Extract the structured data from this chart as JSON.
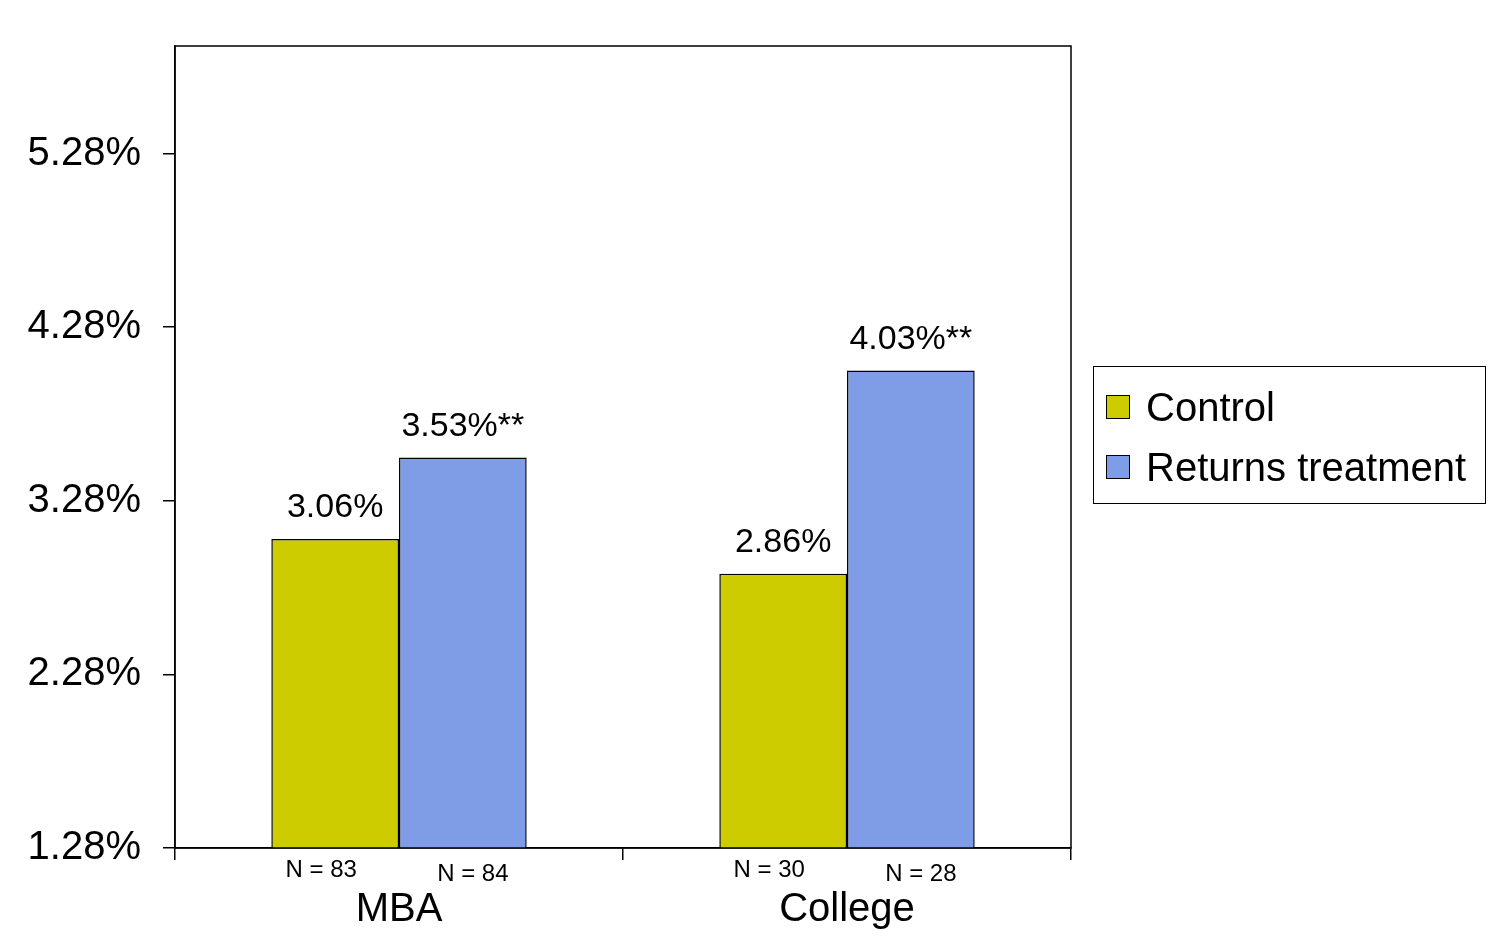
{
  "chart_data": {
    "type": "bar",
    "categories": [
      "MBA",
      "College"
    ],
    "series": [
      {
        "name": "Control",
        "color": "#cccc00",
        "values": [
          3.06,
          2.86
        ],
        "value_labels": [
          "3.06%",
          "2.86%"
        ]
      },
      {
        "name": "Returns treatment",
        "color": "#7f9de6",
        "values": [
          3.53,
          4.03
        ],
        "value_labels": [
          "3.53%**",
          "4.03%**"
        ]
      }
    ],
    "ylim": [
      1.28,
      5.9
    ],
    "yticks": [
      {
        "value": 1.28,
        "label": "1.28%"
      },
      {
        "value": 2.28,
        "label": "2.28%"
      },
      {
        "value": 3.28,
        "label": "3.28%"
      },
      {
        "value": 4.28,
        "label": "4.28%"
      },
      {
        "value": 5.28,
        "label": "5.28%"
      }
    ],
    "annotations": [
      "N = 83",
      "N = 84",
      "N = 30",
      "N = 28"
    ],
    "grid": false,
    "legend": "right"
  }
}
